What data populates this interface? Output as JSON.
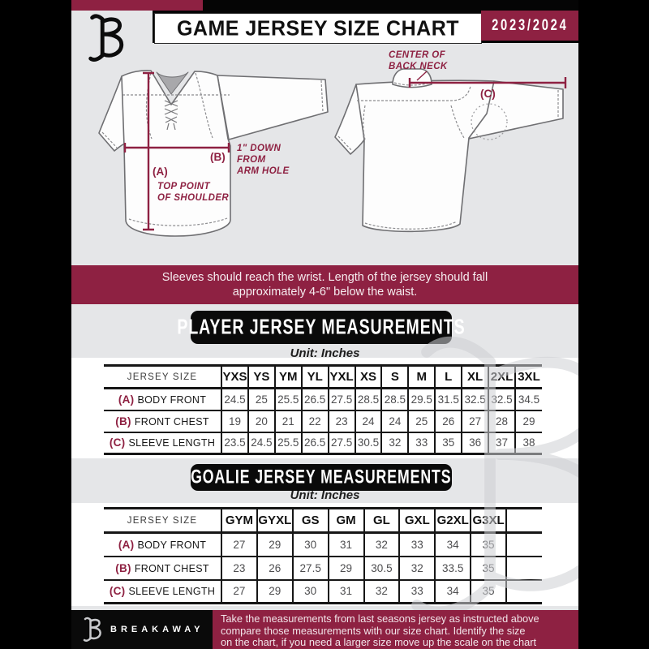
{
  "header": {
    "title": "GAME JERSEY SIZE CHART",
    "season": "2023/2024",
    "brand_logo_icon": "breakaway-b-logo-icon"
  },
  "diagram": {
    "front": {
      "a_label": "(A)",
      "b_label": "(B)",
      "a_note_lines": [
        "TOP POINT",
        "OF SHOULDER"
      ],
      "b_note_lines": [
        "1\" DOWN",
        "FROM",
        "ARM HOLE"
      ]
    },
    "back": {
      "c_label": "(C)",
      "c_note_lines": [
        "CENTER OF",
        "BACK NECK"
      ]
    }
  },
  "notice": {
    "lines": [
      "Sleeves should reach the wrist. Length of the jersey should fall",
      "approximately 4-6\" below the waist."
    ]
  },
  "player_section": {
    "title": "PLAYER JERSEY MEASUREMENTS",
    "unit": "Unit: Inches",
    "table": {
      "size_header": "JERSEY SIZE",
      "sizes": [
        "YXS",
        "YS",
        "YM",
        "YL",
        "YXL",
        "XS",
        "S",
        "M",
        "L",
        "XL",
        "2XL",
        "3XL"
      ],
      "rows": [
        {
          "key": "(A)",
          "label": "BODY FRONT",
          "values": [
            "24.5",
            "25",
            "25.5",
            "26.5",
            "27.5",
            "28.5",
            "28.5",
            "29.5",
            "31.5",
            "32.5",
            "32.5",
            "34.5"
          ]
        },
        {
          "key": "(B)",
          "label": "FRONT CHEST",
          "values": [
            "19",
            "20",
            "21",
            "22",
            "23",
            "24",
            "24",
            "25",
            "26",
            "27",
            "28",
            "29"
          ]
        },
        {
          "key": "(C)",
          "label": "SLEEVE LENGTH",
          "values": [
            "23.5",
            "24.5",
            "25.5",
            "26.5",
            "27.5",
            "30.5",
            "32",
            "33",
            "35",
            "36",
            "37",
            "38"
          ]
        }
      ]
    }
  },
  "goalie_section": {
    "title": "GOALIE JERSEY MEASUREMENTS",
    "unit": "Unit: Inches",
    "table": {
      "size_header": "JERSEY SIZE",
      "sizes": [
        "GYM",
        "GYXL",
        "GS",
        "GM",
        "GL",
        "GXL",
        "G2XL",
        "G3XL",
        ""
      ],
      "rows": [
        {
          "key": "(A)",
          "label": "BODY FRONT",
          "values": [
            "27",
            "29",
            "30",
            "31",
            "32",
            "33",
            "34",
            "35",
            ""
          ]
        },
        {
          "key": "(B)",
          "label": "FRONT CHEST",
          "values": [
            "23",
            "26",
            "27.5",
            "29",
            "30.5",
            "32",
            "33.5",
            "35",
            ""
          ]
        },
        {
          "key": "(C)",
          "label": "SLEEVE LENGTH",
          "values": [
            "27",
            "29",
            "30",
            "31",
            "32",
            "33",
            "34",
            "35",
            ""
          ]
        }
      ]
    }
  },
  "footer": {
    "brand": "BREAKAWAY",
    "brand_logo_icon": "breakaway-b-logo-icon",
    "lines": [
      "Take the measurements from last seasons jersey as instructed above",
      "compare those measurements  with our size chart. Identify the size",
      "on the chart, if you need a larger size move up the scale on the chart"
    ]
  },
  "colors": {
    "maroon": "#8e2142",
    "black": "#0a0a0a",
    "background_gray": "#e5e6e8",
    "table_value_gray": "#4d4d4f"
  },
  "watermark_icon": "breakaway-b-watermark-icon"
}
